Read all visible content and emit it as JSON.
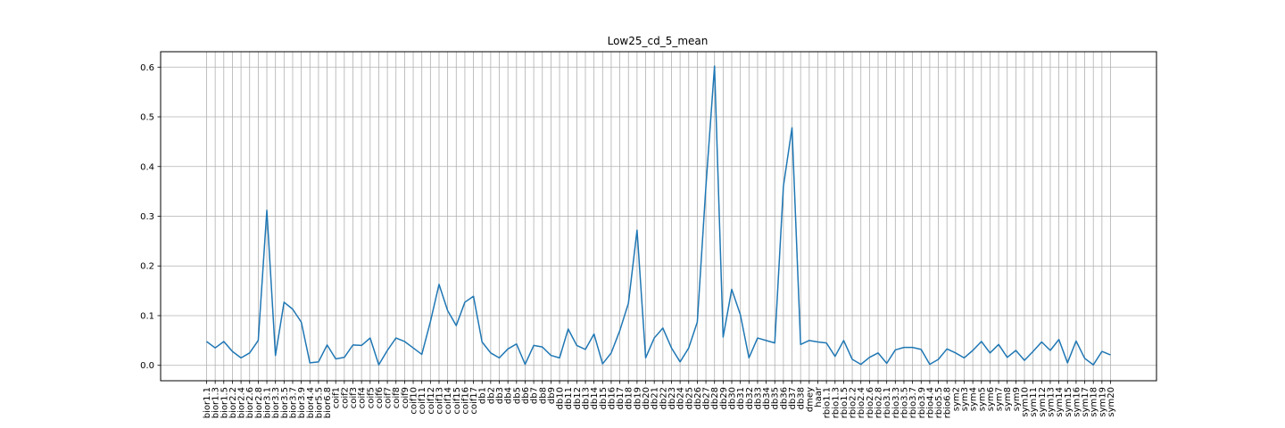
{
  "chart_data": {
    "type": "line",
    "title": "Low25_cd_5_mean",
    "xlabel": "",
    "ylabel": "",
    "ylim": [
      -0.031,
      0.631
    ],
    "yticks": [
      0.0,
      0.1,
      0.2,
      0.3,
      0.4,
      0.5,
      0.6
    ],
    "ytick_labels": [
      "0.0",
      "0.1",
      "0.2",
      "0.3",
      "0.4",
      "0.5",
      "0.6"
    ],
    "grid": true,
    "line_color": "#1f77b4",
    "categories": [
      "bior1.1",
      "bior1.3",
      "bior1.5",
      "bior2.2",
      "bior2.4",
      "bior2.6",
      "bior2.8",
      "bior3.1",
      "bior3.3",
      "bior3.5",
      "bior3.7",
      "bior3.9",
      "bior4.4",
      "bior5.5",
      "bior6.8",
      "coif1",
      "coif2",
      "coif3",
      "coif4",
      "coif5",
      "coif6",
      "coif7",
      "coif8",
      "coif9",
      "coif10",
      "coif11",
      "coif12",
      "coif13",
      "coif14",
      "coif15",
      "coif16",
      "coif17",
      "db1",
      "db2",
      "db3",
      "db4",
      "db5",
      "db6",
      "db7",
      "db8",
      "db9",
      "db10",
      "db11",
      "db12",
      "db13",
      "db14",
      "db15",
      "db16",
      "db17",
      "db18",
      "db19",
      "db20",
      "db21",
      "db22",
      "db23",
      "db24",
      "db25",
      "db26",
      "db27",
      "db28",
      "db29",
      "db30",
      "db31",
      "db32",
      "db33",
      "db34",
      "db35",
      "db36",
      "db37",
      "db38",
      "dmey",
      "haar",
      "rbio1.1",
      "rbio1.3",
      "rbio1.5",
      "rbio2.2",
      "rbio2.4",
      "rbio2.6",
      "rbio2.8",
      "rbio3.1",
      "rbio3.3",
      "rbio3.5",
      "rbio3.7",
      "rbio3.9",
      "rbio4.4",
      "rbio5.5",
      "rbio6.8",
      "sym2",
      "sym3",
      "sym4",
      "sym5",
      "sym6",
      "sym7",
      "sym8",
      "sym9",
      "sym10",
      "sym11",
      "sym12",
      "sym13",
      "sym14",
      "sym15",
      "sym16",
      "sym17",
      "sym18",
      "sym19",
      "sym20"
    ],
    "values": [
      0.048,
      0.035,
      0.048,
      0.028,
      0.015,
      0.025,
      0.05,
      0.312,
      0.02,
      0.127,
      0.113,
      0.087,
      0.005,
      0.007,
      0.041,
      0.013,
      0.016,
      0.041,
      0.04,
      0.055,
      0.001,
      0.03,
      0.055,
      0.048,
      0.035,
      0.022,
      0.088,
      0.163,
      0.11,
      0.08,
      0.127,
      0.139,
      0.047,
      0.025,
      0.015,
      0.033,
      0.043,
      0.002,
      0.04,
      0.037,
      0.02,
      0.015,
      0.073,
      0.04,
      0.032,
      0.063,
      0.003,
      0.025,
      0.07,
      0.125,
      0.272,
      0.015,
      0.055,
      0.075,
      0.035,
      0.007,
      0.035,
      0.087,
      0.36,
      0.602,
      0.057,
      0.153,
      0.102,
      0.015,
      0.055,
      0.05,
      0.045,
      0.36,
      0.478,
      0.042,
      0.05,
      0.047,
      0.045,
      0.018,
      0.05,
      0.012,
      0.002,
      0.016,
      0.025,
      0.004,
      0.031,
      0.036,
      0.036,
      0.032,
      0.002,
      0.012,
      0.033,
      0.025,
      0.015,
      0.03,
      0.048,
      0.025,
      0.042,
      0.016,
      0.03,
      0.01,
      0.028,
      0.047,
      0.03,
      0.052,
      0.005,
      0.049,
      0.014,
      0.001,
      0.028,
      0.021
    ]
  }
}
